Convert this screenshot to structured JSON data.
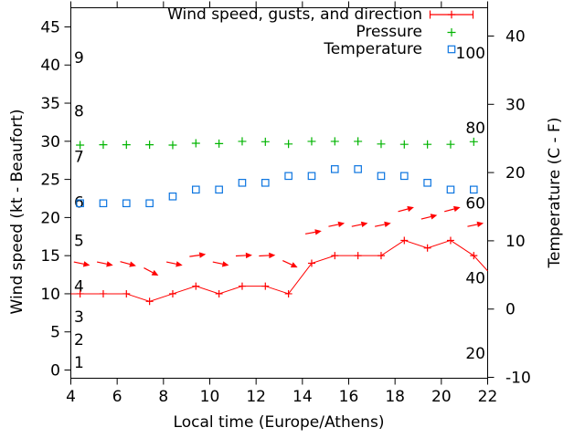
{
  "colors": {
    "wind": "#ff0000",
    "pressure": "#00b400",
    "temperature": "#0b74e0",
    "axis": "#000000",
    "background": "#ffffff"
  },
  "legend": {
    "items": [
      {
        "label": "Wind speed, gusts, and direction",
        "series": "wind",
        "symbol": "errorbar-plus"
      },
      {
        "label": "Pressure",
        "series": "pressure",
        "symbol": "plus"
      },
      {
        "label": "Temperature",
        "series": "temperature",
        "symbol": "open-square"
      }
    ]
  },
  "chart_data": {
    "type": "line",
    "title": "",
    "xlabel": "Local time (Europe/Athens)",
    "ylabel_left": "Wind speed (kt - Beaufort)",
    "ylabel_right": "Temperature (C - F)",
    "x_range": [
      4,
      22
    ],
    "x_ticks": [
      4,
      6,
      8,
      10,
      12,
      14,
      16,
      18,
      20,
      22
    ],
    "y_left_range": [
      0,
      47.5
    ],
    "y_left_ticks": [
      0,
      5,
      10,
      15,
      20,
      25,
      30,
      35,
      40,
      45
    ],
    "y_right_range": [
      -10,
      44
    ],
    "y_right_ticks": [
      -10,
      0,
      10,
      20,
      30,
      40
    ],
    "inner_right_scale_labels": [
      20,
      40,
      60,
      80,
      100
    ],
    "beaufort_labels": [
      {
        "label": "1",
        "kt": 1
      },
      {
        "label": "2",
        "kt": 4
      },
      {
        "label": "3",
        "kt": 7
      },
      {
        "label": "4",
        "kt": 11
      },
      {
        "label": "5",
        "kt": 17
      },
      {
        "label": "6",
        "kt": 22
      },
      {
        "label": "7",
        "kt": 28
      },
      {
        "label": "8",
        "kt": 34
      },
      {
        "label": "9",
        "kt": 41
      }
    ],
    "x": [
      4.4,
      5.4,
      6.4,
      7.4,
      8.4,
      9.4,
      10.4,
      11.4,
      12.4,
      13.4,
      14.4,
      15.4,
      16.4,
      17.4,
      18.4,
      19.4,
      20.4,
      21.4
    ],
    "series": [
      {
        "name": "Wind speed (kt)",
        "style": "line-plus",
        "axis": "left",
        "values": [
          10,
          10,
          10,
          9,
          10,
          11,
          10,
          11,
          11,
          10,
          14,
          15,
          15,
          15,
          17,
          16,
          17,
          15
        ],
        "edge_left": {
          "x": 4,
          "y": 10
        },
        "edge_right": {
          "x": 22,
          "y": 13
        }
      },
      {
        "name": "Wind gusts and direction (kt)",
        "style": "direction-arrows",
        "axis": "left",
        "values": [
          14,
          14,
          14,
          13,
          14,
          15,
          14,
          15,
          15,
          14,
          18,
          19,
          19,
          19,
          21,
          20,
          21,
          19
        ],
        "angles_deg": [
          -12,
          -12,
          -15,
          -28,
          -12,
          8,
          -12,
          3,
          3,
          -25,
          10,
          12,
          12,
          12,
          15,
          14,
          15,
          12
        ]
      },
      {
        "name": "Pressure",
        "style": "plus",
        "axis": "inner-right",
        "values": [
          75.4,
          75.5,
          75.5,
          75.5,
          75.4,
          75.9,
          75.8,
          76.4,
          76.3,
          75.7,
          76.4,
          76.4,
          76.4,
          75.7,
          75.6,
          75.6,
          75.6,
          76.3
        ]
      },
      {
        "name": "Temperature",
        "style": "open-square",
        "axis": "right",
        "values": [
          15.5,
          15.5,
          15.5,
          15.5,
          16.5,
          17.5,
          17.5,
          18.5,
          18.5,
          19.5,
          19.5,
          20.5,
          20.5,
          19.5,
          19.5,
          18.5,
          17.5,
          17.5
        ]
      }
    ]
  }
}
